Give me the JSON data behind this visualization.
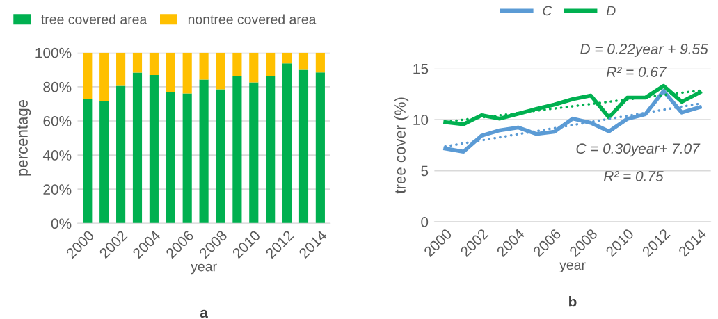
{
  "chart_data": [
    {
      "type": "bar",
      "stacked": true,
      "categories": [
        "2000",
        null,
        "2002",
        null,
        "2004",
        null,
        "2006",
        null,
        "2008",
        null,
        "2010",
        null,
        "2012",
        null,
        "2014"
      ],
      "xlabel": "year",
      "ylabel": "percentage",
      "ylim": [
        0,
        100
      ],
      "yticks": [
        {
          "value": 0,
          "label": "0%"
        },
        {
          "value": 20,
          "label": "20%"
        },
        {
          "value": 40,
          "label": "40%"
        },
        {
          "value": 60,
          "label": "60%"
        },
        {
          "value": 80,
          "label": "80%"
        },
        {
          "value": 100,
          "label": "100%"
        }
      ],
      "grid": "y",
      "legend": "top left",
      "series": [
        {
          "name": "tree covered area",
          "color": "#00b050",
          "values": [
            73,
            71.4,
            80.5,
            88.3,
            86.9,
            77.1,
            76.1,
            84.2,
            78.5,
            86,
            82.6,
            86.4,
            93.7,
            89.9,
            88.4
          ]
        },
        {
          "name": "nontree covered area",
          "color": "#ffc000",
          "values": [
            27,
            28.6,
            19.5,
            11.7,
            13.1,
            22.9,
            23.9,
            15.8,
            21.5,
            14,
            17.4,
            13.6,
            6.3,
            10.1,
            11.6
          ]
        }
      ],
      "annotations": [
        "a"
      ]
    },
    {
      "type": "line",
      "categories": [
        "2000",
        null,
        "2002",
        null,
        "2004",
        null,
        "2006",
        null,
        "2008",
        null,
        "2010",
        null,
        "2012",
        null,
        "2014"
      ],
      "xlabel": "year",
      "ylabel": "tree cover (%)",
      "ylim": [
        0,
        15
      ],
      "yticks": [
        0,
        5,
        10,
        15
      ],
      "grid": "y",
      "legend": "top",
      "series": [
        {
          "name": "C",
          "color": "#5b9bd5",
          "line_style": "solid",
          "values": [
            7.17,
            6.86,
            8.43,
            8.96,
            9.23,
            8.6,
            8.81,
            10.1,
            9.69,
            8.85,
            10.07,
            10.53,
            12.8,
            10.7,
            11.22
          ]
        },
        {
          "name": "D",
          "color": "#00b050",
          "line_style": "solid",
          "values": [
            9.75,
            9.55,
            10.43,
            10.1,
            10.57,
            11.05,
            11.47,
            12.0,
            12.36,
            10.22,
            12.15,
            12.15,
            13.3,
            11.75,
            12.67
          ]
        },
        {
          "color": "#5b9bd5",
          "line_style": "dotted",
          "values": [
            7.37,
            7.67,
            7.97,
            8.27,
            8.57,
            8.87,
            9.17,
            9.47,
            9.77,
            10.07,
            10.37,
            10.67,
            10.97,
            11.27,
            11.57
          ]
        },
        {
          "color": "#00b050",
          "line_style": "dotted",
          "values": [
            9.77,
            9.99,
            10.21,
            10.43,
            10.65,
            10.87,
            11.09,
            11.31,
            11.53,
            11.75,
            11.97,
            12.19,
            12.41,
            12.63,
            12.85
          ]
        }
      ],
      "annotations": [
        "D = 0.22year + 9.55",
        "R² = 0.67",
        "C = 0.30year+ 7.07",
        "R² = 0.75",
        "b"
      ]
    }
  ]
}
